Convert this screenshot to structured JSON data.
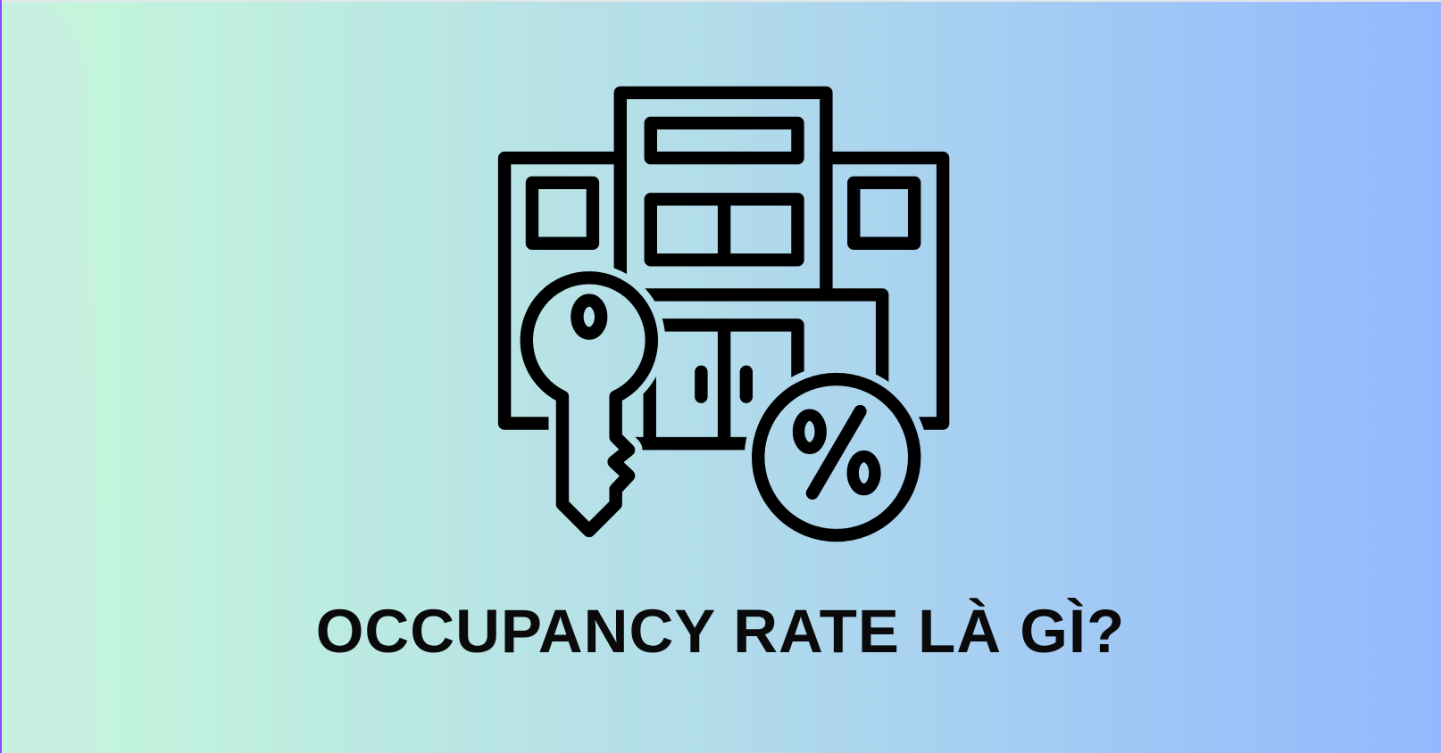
{
  "banner": {
    "title": "OCCUPANCY RATE LÀ GÌ?",
    "icon": "hotel-key-percent-icon",
    "colors": {
      "gradient_left": "#c6f8da",
      "gradient_right": "#93b8fe",
      "icon_stroke": "#000000",
      "title": "#0a0a0a"
    }
  }
}
